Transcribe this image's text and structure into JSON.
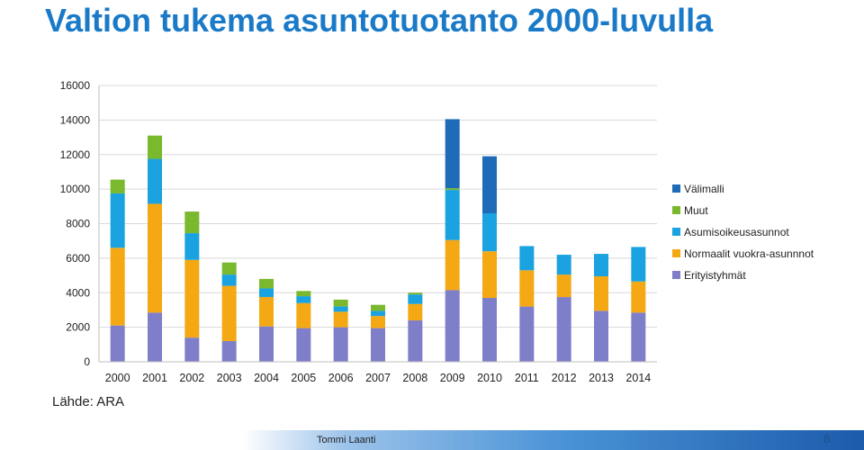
{
  "slide": {
    "title": "Valtion tukema asuntotuotanto 2000-luvulla",
    "source": "Lähde: ARA",
    "footer_author": "Tommi Laanti",
    "page_number": "8"
  },
  "colors": {
    "title": "#1a7ac8",
    "footer_gradient": [
      "#9cc3ea",
      "#4a93d6",
      "#1c5bab"
    ]
  },
  "chart_data": {
    "type": "bar",
    "stacked": true,
    "categories": [
      "2000",
      "2001",
      "2002",
      "2003",
      "2004",
      "2005",
      "2006",
      "2007",
      "2008",
      "2009",
      "2010",
      "2011",
      "2012",
      "2013",
      "2014"
    ],
    "ylim": [
      0,
      16000
    ],
    "yticks": [
      0,
      2000,
      4000,
      6000,
      8000,
      10000,
      12000,
      14000,
      16000
    ],
    "ytick_labels": [
      "0",
      "2000",
      "4000",
      "6000",
      "8000",
      "10000",
      "12000",
      "14000",
      "16000"
    ],
    "grid": true,
    "legend_position": "right",
    "series": [
      {
        "name": "Erityistyhmät",
        "color": "#7f7fc9",
        "values": [
          2100,
          2850,
          1400,
          1200,
          2050,
          1950,
          2000,
          1950,
          2400,
          4150,
          3700,
          3200,
          3750,
          2950,
          2850
        ]
      },
      {
        "name": "Normaalit vuokra-asunnnot",
        "color": "#f4a814",
        "values": [
          4500,
          6300,
          4500,
          3200,
          1700,
          1450,
          900,
          700,
          950,
          2900,
          2700,
          2100,
          1300,
          2000,
          1800
        ]
      },
      {
        "name": "Asumisoikeusasunnot",
        "color": "#1aa3e0",
        "values": [
          3150,
          2600,
          1550,
          650,
          500,
          400,
          300,
          300,
          550,
          2900,
          2200,
          1400,
          1150,
          1300,
          2000
        ]
      },
      {
        "name": "Muut",
        "color": "#7ab82e",
        "values": [
          800,
          1350,
          1250,
          700,
          550,
          300,
          400,
          350,
          100,
          100,
          0,
          0,
          0,
          0,
          0
        ]
      },
      {
        "name": "Välimalli",
        "color": "#1e6bb8",
        "values": [
          0,
          0,
          0,
          0,
          0,
          0,
          0,
          0,
          0,
          4000,
          3300,
          0,
          0,
          0,
          0
        ]
      }
    ],
    "legend_order": [
      "Välimalli",
      "Muut",
      "Asumisoikeusasunnot",
      "Normaalit vuokra-asunnnot",
      "Erityistyhmät"
    ]
  }
}
